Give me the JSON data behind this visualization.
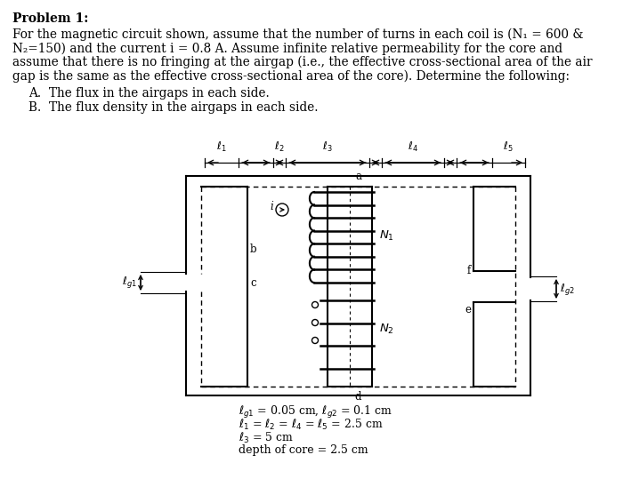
{
  "title": "Problem 1:",
  "para1": "For the magnetic circuit shown, assume that the number of turns in each coil is (N₁ = 600 &",
  "para2": "N₂=150) and the current i = 0.8 A. Assume infinite relative permeability for the core and",
  "para3": "assume that there is no fringing at the airgap (i.e., the effective cross-sectional area of the air",
  "para4": "gap is the same as the effective cross-sectional area of the core). Determine the following:",
  "item_A": "A.  The flux in the airgaps in each side.",
  "item_B": "B.  The flux density in the airgaps in each side.",
  "eqn_line1": "$\\ell_{g1}$ = 0.05 cm, $\\ell_{g2}$ = 0.1 cm",
  "eqn_line2": "$\\ell_1$ = $\\ell_2$ = $\\ell_4$ = $\\ell_5$ = 2.5 cm",
  "eqn_line3": "$\\ell_3$ = 5 cm",
  "eqn_line4": "depth of core = 2.5 cm",
  "bg_color": "#ffffff",
  "text_color": "#000000",
  "fig_width": 7.0,
  "fig_height": 5.39
}
